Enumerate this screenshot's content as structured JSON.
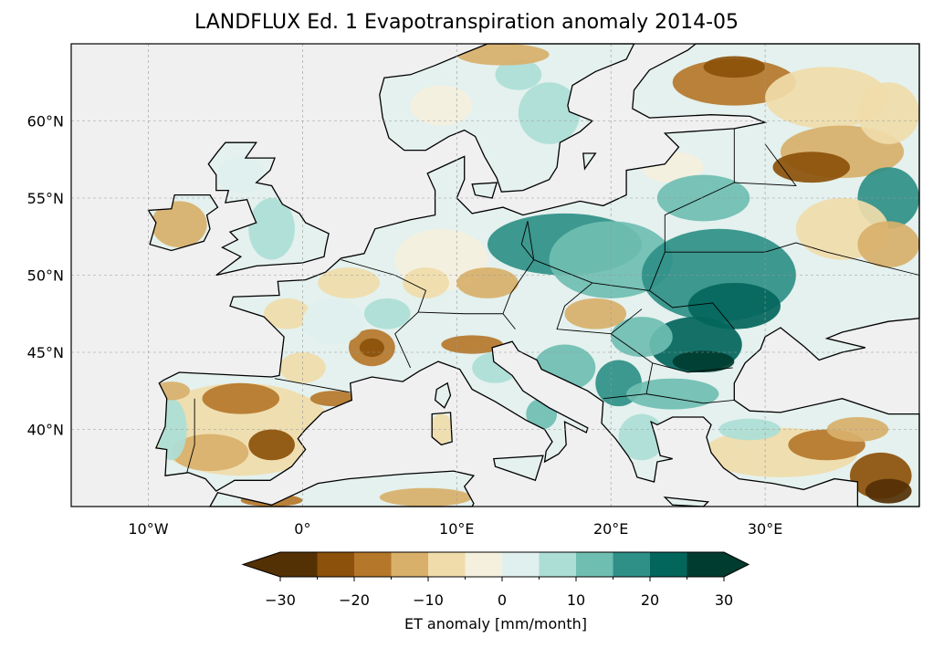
{
  "title": "LANDFLUX Ed. 1 Evapotranspiration anomaly 2014-05",
  "map": {
    "extent_lon": [
      -15,
      40
    ],
    "extent_lat": [
      35,
      65
    ],
    "projection": "PlateCarree",
    "lon_ticks": [
      {
        "value": -10,
        "label": "10°W"
      },
      {
        "value": 0,
        "label": "0°"
      },
      {
        "value": 10,
        "label": "10°E"
      },
      {
        "value": 20,
        "label": "20°E"
      },
      {
        "value": 30,
        "label": "30°E"
      }
    ],
    "lat_ticks": [
      {
        "value": 40,
        "label": "40°N"
      },
      {
        "value": 45,
        "label": "45°N"
      },
      {
        "value": 50,
        "label": "50°N"
      },
      {
        "value": 55,
        "label": "55°N"
      },
      {
        "value": 60,
        "label": "60°N"
      }
    ],
    "ocean_color": "#f0f0f0",
    "gridlines": true
  },
  "colorbar": {
    "label": "ET anomaly [mm/month]",
    "bounds": [
      -30,
      -25,
      -20,
      -15,
      -10,
      -5,
      0,
      5,
      10,
      15,
      20,
      25,
      30
    ],
    "tick_values": [
      -30,
      -20,
      -10,
      0,
      10,
      20,
      30
    ],
    "tick_labels": [
      "−30",
      "−20",
      "−10",
      "0",
      "10",
      "20",
      "30"
    ],
    "colors": [
      "#543005",
      "#8c510a",
      "#b5772a",
      "#d8b06a",
      "#f0dcaa",
      "#f5f0de",
      "#e0f0ee",
      "#acded6",
      "#6fbeb2",
      "#2f9087",
      "#03665c",
      "#003c30"
    ],
    "extend": "both"
  }
}
